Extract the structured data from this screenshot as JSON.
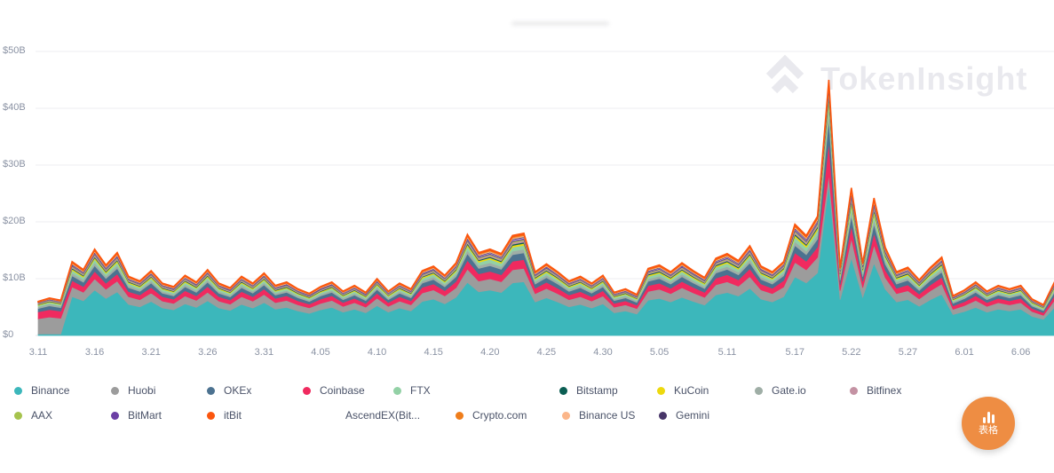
{
  "watermark": {
    "text": "TokenInsight"
  },
  "table_button": {
    "label": "表格",
    "color": "#EE8D43",
    "icon": "bar-chart-icon"
  },
  "chart_data": {
    "type": "area",
    "stacked": true,
    "title": "",
    "xlabel": "",
    "ylabel": "",
    "unit": "USD billions",
    "ylim_busd": [
      0,
      50
    ],
    "grid": "horizontal",
    "legend_position": "bottom",
    "y_ticks": [
      "$0",
      "$10B",
      "$20B",
      "$30B",
      "$40B",
      "$50B"
    ],
    "x_tick_days": [
      0,
      5,
      10,
      15,
      20,
      25,
      30,
      35,
      40,
      45,
      50,
      55,
      61,
      67,
      72,
      77,
      82,
      87
    ],
    "x_tick_labels": [
      "3.11",
      "3.16",
      "3.21",
      "3.26",
      "3.31",
      "4.05",
      "4.10",
      "4.15",
      "4.20",
      "4.25",
      "4.30",
      "5.05",
      "5.11",
      "5.17",
      "5.22",
      "5.27",
      "6.01",
      "6.06"
    ],
    "dates": [
      "3.11",
      "3.12",
      "3.13",
      "3.14",
      "3.15",
      "3.16",
      "3.17",
      "3.18",
      "3.19",
      "3.20",
      "3.21",
      "3.22",
      "3.23",
      "3.24",
      "3.25",
      "3.26",
      "3.27",
      "3.28",
      "3.29",
      "3.30",
      "3.31",
      "4.01",
      "4.02",
      "4.03",
      "4.04",
      "4.05",
      "4.06",
      "4.07",
      "4.08",
      "4.09",
      "4.10",
      "4.11",
      "4.12",
      "4.13",
      "4.14",
      "4.15",
      "4.16",
      "4.17",
      "4.18",
      "4.19",
      "4.20",
      "4.21",
      "4.22",
      "4.23",
      "4.24",
      "4.25",
      "4.26",
      "4.27",
      "4.28",
      "4.29",
      "4.30",
      "5.01",
      "5.02",
      "5.03",
      "5.04",
      "5.05",
      "5.06",
      "5.07",
      "5.08",
      "5.09",
      "5.10",
      "5.11",
      "5.12",
      "5.13",
      "5.14",
      "5.15",
      "5.16",
      "5.17",
      "5.18",
      "5.19",
      "5.20",
      "5.21",
      "5.22",
      "5.23",
      "5.24",
      "5.25",
      "5.26",
      "5.27",
      "5.28",
      "5.29",
      "5.30",
      "5.31",
      "6.01",
      "6.02",
      "6.03",
      "6.04",
      "6.05",
      "6.06",
      "6.07",
      "6.08",
      "6.09"
    ],
    "total_volume_busd": [
      6.0,
      6.6,
      6.2,
      13.0,
      11.6,
      15.2,
      12.4,
      14.6,
      10.4,
      9.6,
      11.4,
      9.2,
      8.6,
      10.6,
      9.4,
      11.6,
      9.2,
      8.4,
      10.4,
      9.2,
      11.0,
      8.8,
      9.4,
      8.2,
      7.4,
      8.6,
      9.4,
      7.8,
      8.8,
      7.6,
      10.0,
      7.8,
      9.2,
      8.2,
      11.4,
      12.2,
      10.6,
      12.8,
      17.8,
      14.6,
      15.2,
      14.4,
      17.6,
      18.0,
      11.2,
      12.6,
      11.2,
      9.6,
      10.4,
      9.2,
      10.6,
      7.6,
      8.2,
      7.2,
      11.8,
      12.4,
      11.2,
      12.8,
      11.4,
      10.2,
      13.6,
      14.4,
      13.2,
      15.8,
      12.2,
      11.2,
      13.0,
      19.6,
      17.6,
      21.0,
      45.0,
      12.0,
      26.0,
      12.8,
      24.2,
      15.5,
      11.2,
      12.0,
      9.8,
      12.0,
      13.8,
      7.0,
      8.0,
      9.4,
      7.8,
      8.8,
      8.2,
      8.8,
      6.4,
      5.4,
      9.5
    ],
    "regimes": {
      "early_days": [
        0,
        2
      ],
      "spike_day": 70
    },
    "series": [
      {
        "name": "Binance",
        "color": "#3CB7BB",
        "share": 0.52,
        "share_early": 0.04,
        "share_spike": 0.6
      },
      {
        "name": "Huobi",
        "color": "#9C9C9C",
        "share": 0.13,
        "share_early": 0.45,
        "share_spike": 0.04
      },
      {
        "name": "Coinbase",
        "color": "#F02A5F",
        "share": 0.085,
        "share_early": 0.2,
        "share_spike": 0.13
      },
      {
        "name": "OKEx",
        "color": "#4C7290",
        "share": 0.065,
        "share_early": 0.1,
        "share_spike": 0.09
      },
      {
        "name": "Gate.io",
        "color": "#9FAEA6",
        "share": 0.035,
        "share_early": 0.05,
        "share_spike": 0.035
      },
      {
        "name": "FTX",
        "color": "#93D1A6",
        "share": 0.038,
        "share_early": 0.04,
        "share_spike": 0.035
      },
      {
        "name": "KuCoin",
        "color": "#EDD90E",
        "share": 0.018,
        "share_early": 0.02,
        "share_spike": 0.012
      },
      {
        "name": "Bitstamp",
        "color": "#0B5E53",
        "share": 0.012,
        "share_early": 0.015,
        "share_spike": 0.01
      },
      {
        "name": "Bitfinex",
        "color": "#C492A3",
        "share": 0.016,
        "share_early": 0.02,
        "share_spike": 0.012
      },
      {
        "name": "AAX",
        "color": "#A6C34D",
        "share": 0.01,
        "share_early": 0.01,
        "share_spike": 0.008
      },
      {
        "name": "BitMart",
        "color": "#6C40A5",
        "share": 0.01,
        "share_early": 0.01,
        "share_spike": 0.006
      },
      {
        "name": "AscendEX(Bit...",
        "color": "#FFFFFF",
        "share": 0.008,
        "share_early": 0.005,
        "share_spike": 0.005
      },
      {
        "name": "Gemini",
        "color": "#473568",
        "share": 0.008,
        "share_early": 0.005,
        "share_spike": 0.006
      },
      {
        "name": "Binance US",
        "color": "#FBB68A",
        "share": 0.012,
        "share_early": 0.01,
        "share_spike": 0.008
      },
      {
        "name": "Crypto.com",
        "color": "#EF7D1B",
        "share": 0.013,
        "share_early": 0.01,
        "share_spike": 0.01
      },
      {
        "name": "itBit",
        "color": "#FB560E",
        "share": 0.01,
        "share_early": 0.015,
        "share_spike": 0.009
      }
    ],
    "legend": {
      "row1": [
        "Binance",
        "Huobi",
        "OKEx",
        "Coinbase",
        "FTX",
        "Bitstamp",
        "KuCoin",
        "Gate.io",
        "Bitfinex"
      ],
      "row2": [
        "AAX",
        "BitMart",
        "itBit",
        "AscendEX(Bit...",
        "Crypto.com",
        "Binance US",
        "Gemini"
      ]
    }
  }
}
